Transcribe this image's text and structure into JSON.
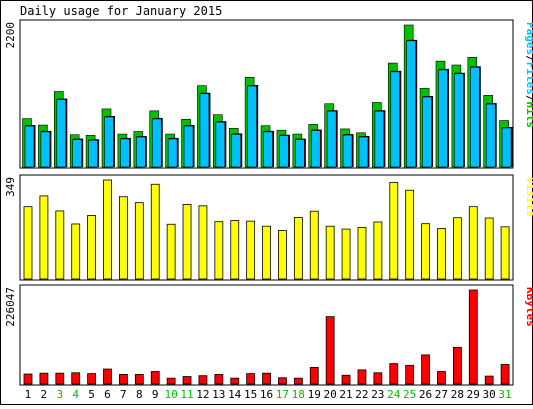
{
  "chart_data": {
    "type": "bar",
    "title": "Daily usage for January 2015",
    "days": [
      "1",
      "2",
      "3",
      "4",
      "5",
      "6",
      "7",
      "8",
      "9",
      "10",
      "11",
      "12",
      "13",
      "14",
      "15",
      "16",
      "17",
      "18",
      "19",
      "20",
      "21",
      "22",
      "23",
      "24",
      "25",
      "26",
      "27",
      "28",
      "29",
      "30",
      "31"
    ],
    "weekend_days": [
      "3",
      "4",
      "10",
      "11",
      "17",
      "18",
      "24",
      "25",
      "31"
    ],
    "panels": [
      {
        "id": "hits-pages",
        "ymax_label": "2200",
        "ymax": 2200,
        "right_label_parts": [
          {
            "text": "Pages",
            "color_key": "pages"
          },
          {
            "text": "/",
            "color_key": "slash"
          },
          {
            "text": "Files",
            "color_key": "files"
          },
          {
            "text": "/",
            "color_key": "slash"
          },
          {
            "text": "Hits",
            "color_key": "hits"
          }
        ],
        "series": [
          {
            "name": "Hits",
            "color_key": "hits",
            "values": [
              750,
              650,
              1170,
              500,
              490,
              900,
              510,
              550,
              870,
              510,
              740,
              1260,
              810,
              600,
              1390,
              640,
              570,
              510,
              660,
              980,
              590,
              530,
              1000,
              1610,
              2200,
              1220,
              1640,
              1580,
              1700,
              1110,
              720
            ]
          },
          {
            "name": "Files",
            "color_key": "files",
            "values": [
              650,
              560,
              1060,
              440,
              430,
              790,
              450,
              480,
              760,
              450,
              650,
              1150,
              710,
              520,
              1270,
              560,
              500,
              440,
              580,
              880,
              510,
              480,
              880,
              1490,
              1970,
              1100,
              1520,
              1460,
              1560,
              990,
              620
            ]
          }
        ]
      },
      {
        "id": "visits",
        "ymax_label": "349",
        "ymax": 349,
        "right_label_parts": [
          {
            "text": "Visits",
            "color_key": "visits"
          }
        ],
        "series": [
          {
            "name": "Visits",
            "color_key": "visits",
            "values": [
              255,
              293,
              240,
              194,
              224,
              349,
              290,
              269,
              334,
              193,
              263,
              258,
              202,
              206,
              204,
              186,
              171,
              217,
              239,
              186,
              176,
              182,
              201,
              340,
              313,
              195,
              178,
              216,
              255,
              215,
              184
            ]
          }
        ]
      },
      {
        "id": "kbytes",
        "ymax_label": "226047",
        "ymax": 226047,
        "right_label_parts": [
          {
            "text": "KBytes",
            "color_key": "kbytes"
          }
        ],
        "series": [
          {
            "name": "KBytes",
            "color_key": "kbytes",
            "values": [
              24000,
              26000,
              26000,
              27000,
              25000,
              36000,
              23000,
              23000,
              30000,
              14000,
              18000,
              20000,
              23000,
              14000,
              25000,
              26000,
              15000,
              14000,
              40000,
              162000,
              21000,
              34000,
              27000,
              49000,
              45000,
              70000,
              30000,
              88000,
              226047,
              19000,
              47000
            ]
          }
        ]
      }
    ]
  },
  "colors": {
    "hits": "#00c000",
    "files": "#00c0ff",
    "pages": "#00c0ff",
    "slash": "#000000",
    "visits": "#ffff00",
    "kbytes": "#ff0000",
    "weekday_label": "#000000",
    "weekend_label": "#00c000",
    "frame": "#000000",
    "shadow": "#000000"
  }
}
